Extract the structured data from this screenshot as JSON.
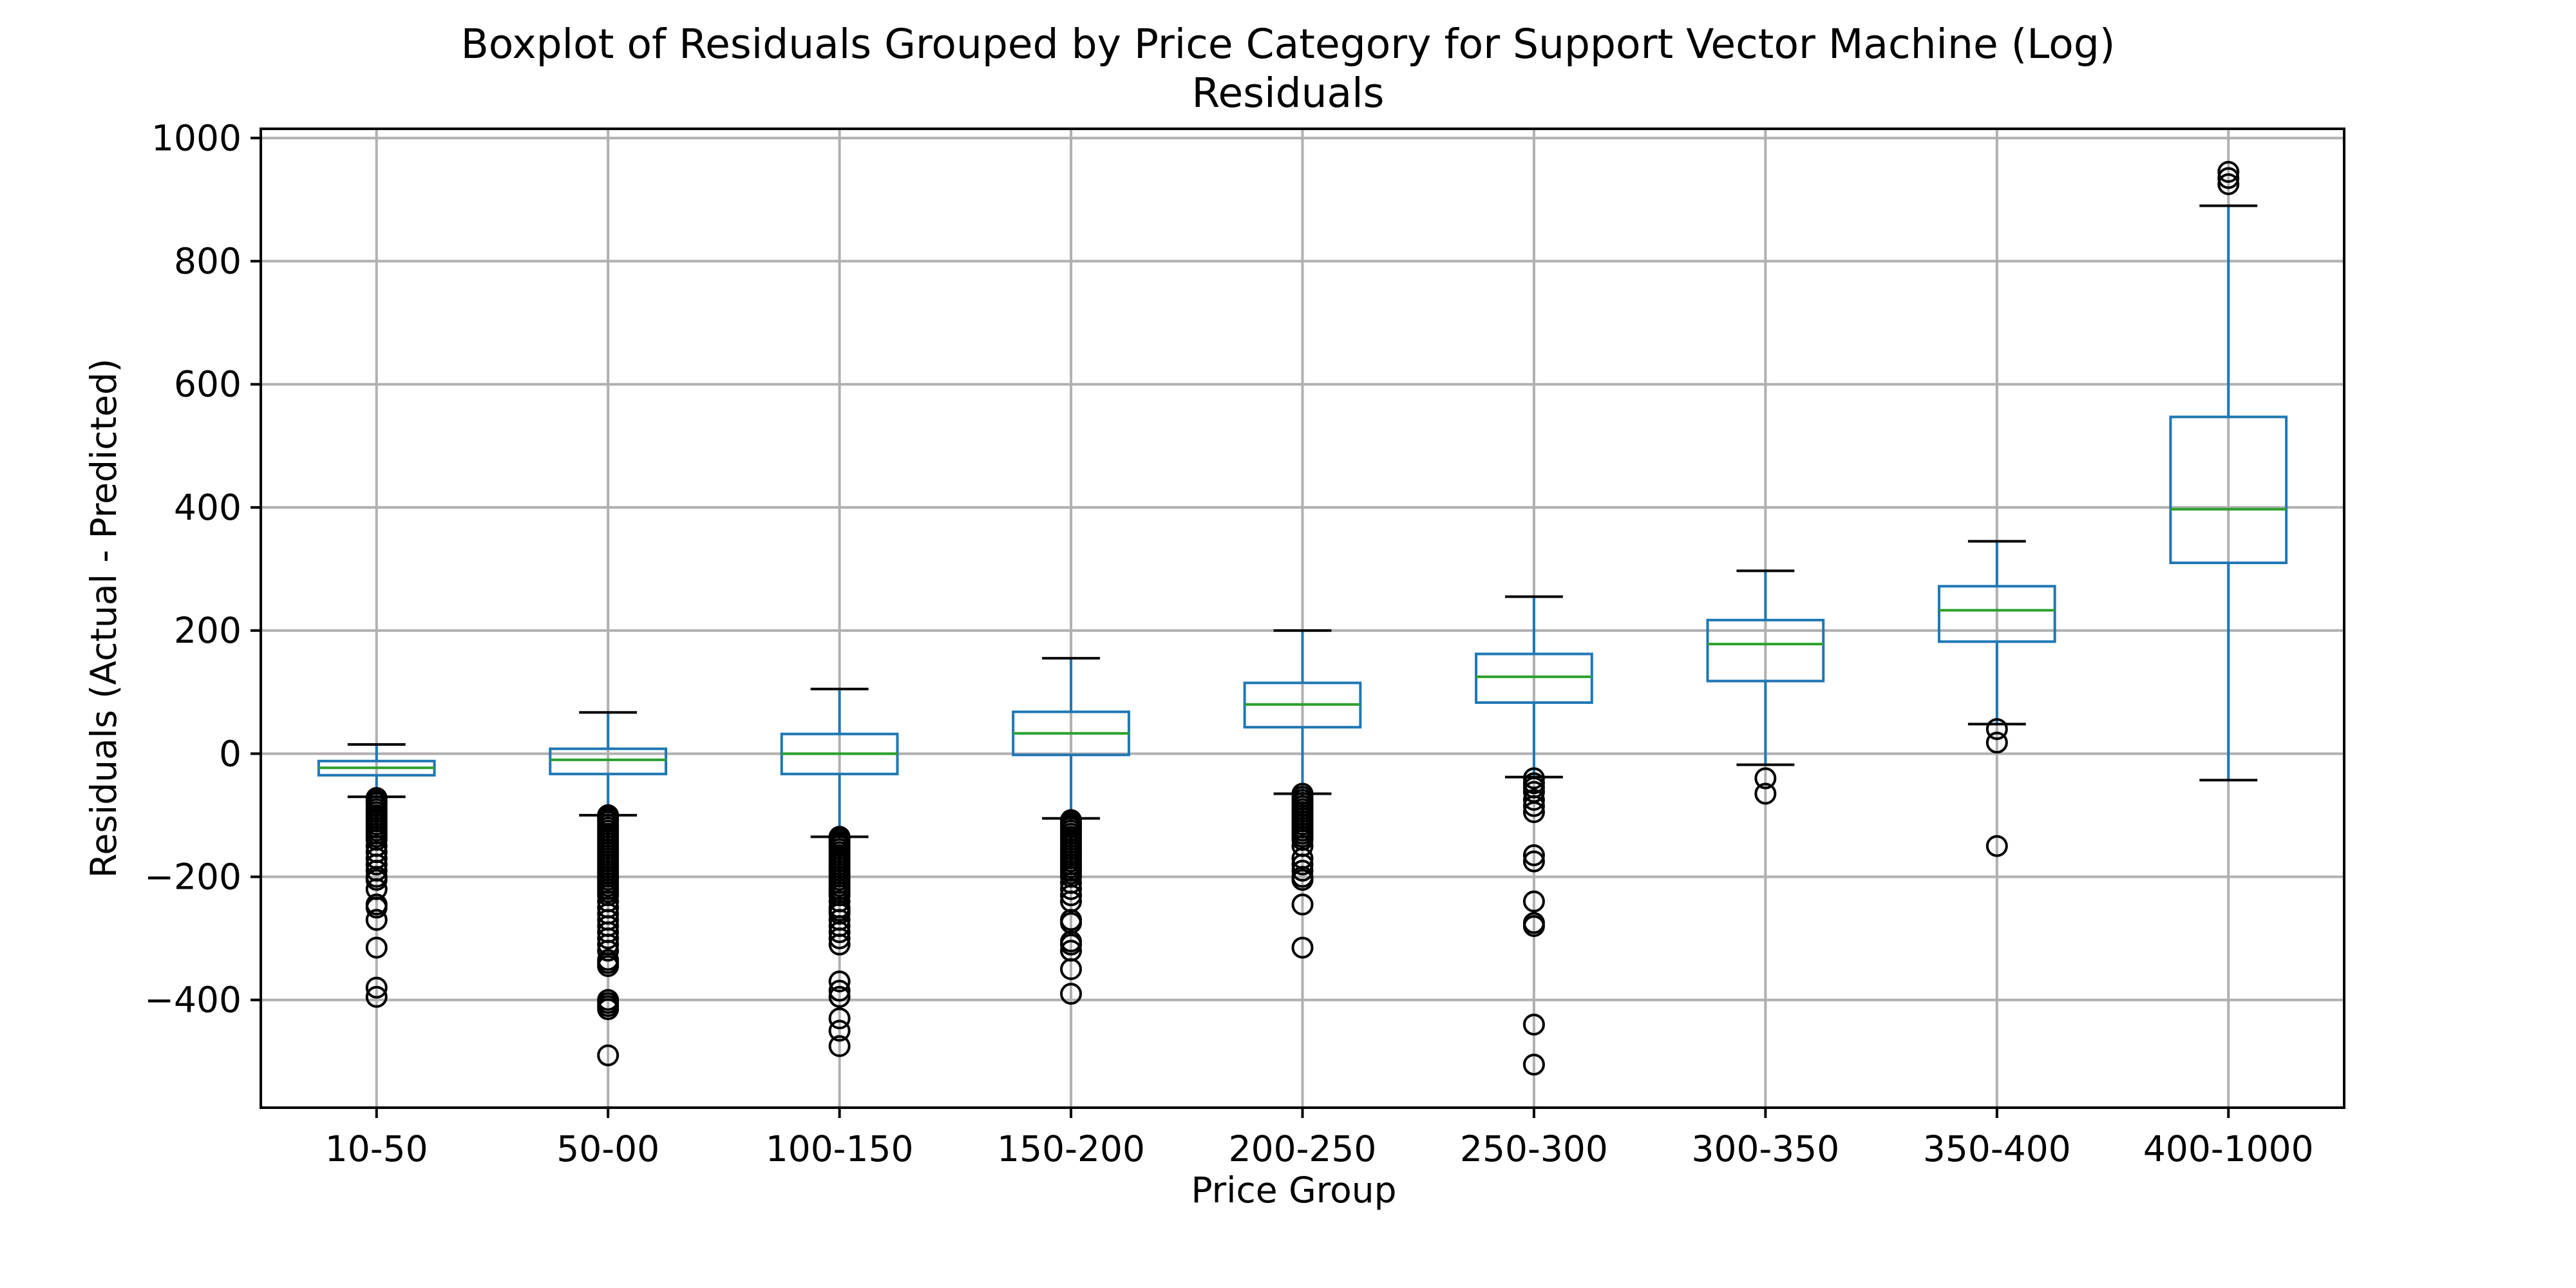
{
  "chart_data": {
    "type": "boxplot",
    "title": "Boxplot of Residuals Grouped by Price Category for Support Vector Machine (Log)",
    "subtitle": "Residuals",
    "xlabel": "Price Group",
    "ylabel": "Residuals (Actual - Predicted)",
    "ylim": [
      -575,
      1015
    ],
    "yticks": [
      -400,
      -200,
      0,
      200,
      400,
      600,
      800,
      1000
    ],
    "ytick_labels": [
      "−400",
      "−200",
      "0",
      "200",
      "400",
      "600",
      "800",
      "1000"
    ],
    "grid": true,
    "colors": {
      "box": "#1f77b4",
      "median": "#2ca02c",
      "whisker": "#1f77b4",
      "cap": "#000000",
      "flier": "#000000",
      "grid": "#b0b0b0"
    },
    "categories": [
      "10-50",
      "50-00",
      "100-150",
      "150-200",
      "200-250",
      "250-300",
      "300-350",
      "350-400",
      "400-1000"
    ],
    "boxes": [
      {
        "whislo": -70,
        "q1": -35,
        "med": -23,
        "q3": -12,
        "whishi": 15,
        "fliers": [
          -72,
          -76,
          -80,
          -85,
          -90,
          -95,
          -100,
          -105,
          -110,
          -115,
          -120,
          -125,
          -130,
          -135,
          -140,
          -150,
          -160,
          -170,
          -180,
          -190,
          -200,
          -205,
          -220,
          -245,
          -250,
          -270,
          -315,
          -380,
          -395
        ]
      },
      {
        "whislo": -100,
        "q1": -33,
        "med": -10,
        "q3": 8,
        "whishi": 67,
        "fliers": [
          -100,
          -103,
          -107,
          -110,
          -115,
          -120,
          -125,
          -130,
          -135,
          -140,
          -145,
          -150,
          -155,
          -160,
          -165,
          -170,
          -175,
          -180,
          -185,
          -190,
          -195,
          -200,
          -205,
          -210,
          -215,
          -220,
          -225,
          -230,
          -240,
          -250,
          -260,
          -270,
          -280,
          -290,
          -300,
          -310,
          -320,
          -335,
          -340,
          -345,
          -400,
          -405,
          -410,
          -415,
          -490
        ]
      },
      {
        "whislo": -135,
        "q1": -33,
        "med": 0,
        "q3": 32,
        "whishi": 105,
        "fliers": [
          -135,
          -138,
          -142,
          -146,
          -150,
          -155,
          -160,
          -165,
          -170,
          -175,
          -180,
          -185,
          -190,
          -195,
          -200,
          -205,
          -210,
          -215,
          -220,
          -225,
          -230,
          -240,
          -250,
          -255,
          -260,
          -270,
          -280,
          -290,
          -300,
          -310,
          -370,
          -385,
          -395,
          -430,
          -450,
          -475
        ]
      },
      {
        "whislo": -105,
        "q1": -2,
        "med": 33,
        "q3": 68,
        "whishi": 155,
        "fliers": [
          -108,
          -112,
          -116,
          -120,
          -125,
          -130,
          -135,
          -140,
          -145,
          -150,
          -155,
          -160,
          -165,
          -170,
          -175,
          -180,
          -185,
          -190,
          -195,
          -200,
          -210,
          -220,
          -230,
          -240,
          -270,
          -275,
          -305,
          -310,
          -320,
          -350,
          -390
        ]
      },
      {
        "whislo": -65,
        "q1": 43,
        "med": 80,
        "q3": 115,
        "whishi": 200,
        "fliers": [
          -65,
          -70,
          -75,
          -80,
          -85,
          -90,
          -95,
          -100,
          -105,
          -110,
          -115,
          -120,
          -125,
          -130,
          -135,
          -140,
          -150,
          -170,
          -180,
          -190,
          -200,
          -205,
          -245,
          -315
        ]
      },
      {
        "whislo": -38,
        "q1": 83,
        "med": 125,
        "q3": 162,
        "whishi": 255,
        "fliers": [
          -40,
          -48,
          -55,
          -62,
          -75,
          -85,
          -95,
          -165,
          -175,
          -240,
          -275,
          -280,
          -440,
          -505
        ]
      },
      {
        "whislo": -18,
        "q1": 118,
        "med": 178,
        "q3": 217,
        "whishi": 297,
        "fliers": [
          -40,
          -65
        ]
      },
      {
        "whislo": 48,
        "q1": 182,
        "med": 233,
        "q3": 272,
        "whishi": 345,
        "fliers": [
          40,
          18,
          -150
        ]
      },
      {
        "whislo": -43,
        "q1": 310,
        "med": 397,
        "q3": 547,
        "whishi": 890,
        "fliers": [
          925,
          935,
          945
        ]
      }
    ]
  }
}
